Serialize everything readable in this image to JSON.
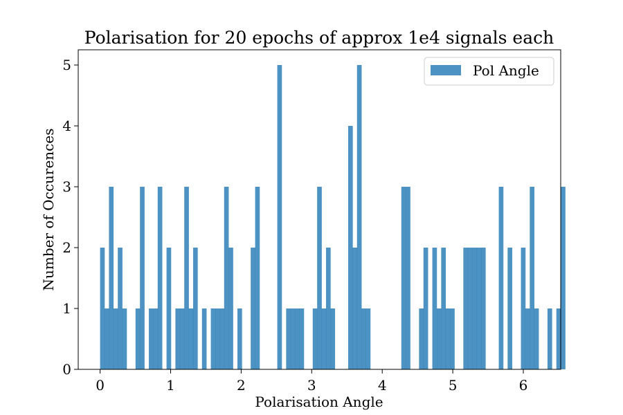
{
  "colors": {
    "bar": "#1f77b4",
    "axis": "#000000",
    "legend_border": "#cccccc"
  },
  "chart_data": {
    "type": "bar",
    "title": "Polarisation for 20 epochs of approx 1e4 signals each",
    "xlabel": "Polarisation Angle",
    "ylabel": "Number of Occurences",
    "xlim": [
      -0.31,
      6.53
    ],
    "ylim": [
      0,
      5.25
    ],
    "xticks": [
      0,
      1,
      2,
      3,
      4,
      5,
      6
    ],
    "yticks": [
      0,
      1,
      2,
      3,
      4,
      5
    ],
    "legend": {
      "position": "top-right",
      "label": "Pol Angle"
    },
    "grid": false,
    "bin_start": 0.0,
    "bin_width": 0.0628,
    "values": [
      2,
      1,
      3,
      1,
      2,
      1,
      0,
      0,
      1,
      3,
      0,
      1,
      1,
      3,
      0,
      2,
      0,
      1,
      1,
      3,
      1,
      2,
      0,
      1,
      0,
      1,
      1,
      1,
      3,
      2,
      0,
      1,
      0,
      0,
      2,
      3,
      0,
      0,
      0,
      0,
      5,
      0,
      1,
      1,
      1,
      1,
      0,
      0,
      1,
      3,
      1,
      2,
      1,
      0,
      0,
      0,
      4,
      2,
      5,
      1,
      1,
      0,
      0,
      0,
      0,
      0,
      0,
      0,
      3,
      3,
      0,
      0,
      1,
      2,
      0,
      2,
      1,
      2,
      1,
      1,
      0,
      0,
      2,
      2,
      2,
      2,
      2,
      0,
      0,
      0,
      3,
      0,
      2,
      0,
      0,
      2,
      1,
      3,
      1,
      0,
      0,
      1,
      0,
      1,
      3
    ]
  }
}
